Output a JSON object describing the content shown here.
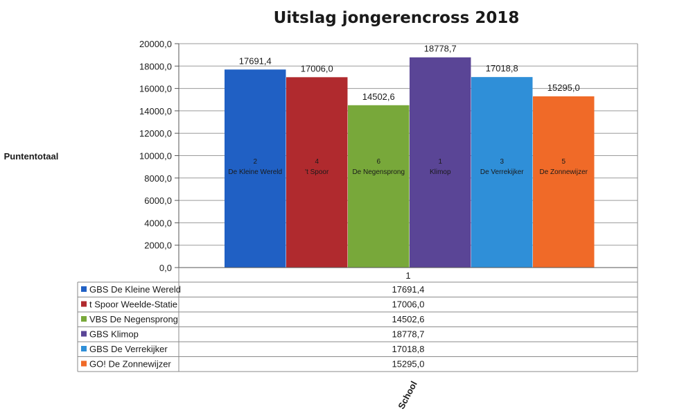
{
  "chart_data": {
    "type": "bar",
    "title": "Uitslag jongerencross 2018",
    "ylabel": "Puntentotaal",
    "xlabel": "School",
    "ylim": [
      0,
      20000
    ],
    "yticks": [
      "0,0",
      "2000,0",
      "4000,0",
      "6000,0",
      "8000,0",
      "10000,0",
      "12000,0",
      "14000,0",
      "16000,0",
      "18000,0",
      "20000,0"
    ],
    "categories": [
      "1"
    ],
    "grid": true,
    "legend_position": "bottom-table",
    "series": [
      {
        "name": "GBS De Kleine Wereld",
        "values": [
          17691.4
        ],
        "value_label": "17691,4",
        "rank": "2",
        "bar_label": "De Kleine Wereld",
        "color": "#2060c4"
      },
      {
        "name": "t Spoor Weelde-Statie",
        "values": [
          17006.0
        ],
        "value_label": "17006,0",
        "rank": "4",
        "bar_label": "'t Spoor",
        "color": "#b02a2e"
      },
      {
        "name": "VBS De Negensprong",
        "values": [
          14502.6
        ],
        "value_label": "14502,6",
        "rank": "6",
        "bar_label": "De Negensprong",
        "color": "#78a83a"
      },
      {
        "name": "GBS Klimop",
        "values": [
          18778.7
        ],
        "value_label": "18778,7",
        "rank": "1",
        "bar_label": "Klimop",
        "color": "#5a4596"
      },
      {
        "name": "GBS De Verrekijker",
        "values": [
          17018.8
        ],
        "value_label": "17018,8",
        "rank": "3",
        "bar_label": "De Verrekijker",
        "color": "#2f8fd8"
      },
      {
        "name": "GO! De Zonnewijzer",
        "values": [
          15295.0
        ],
        "value_label": "15295,0",
        "rank": "5",
        "bar_label": "De Zonnewijzer",
        "color": "#f06a28"
      }
    ]
  }
}
